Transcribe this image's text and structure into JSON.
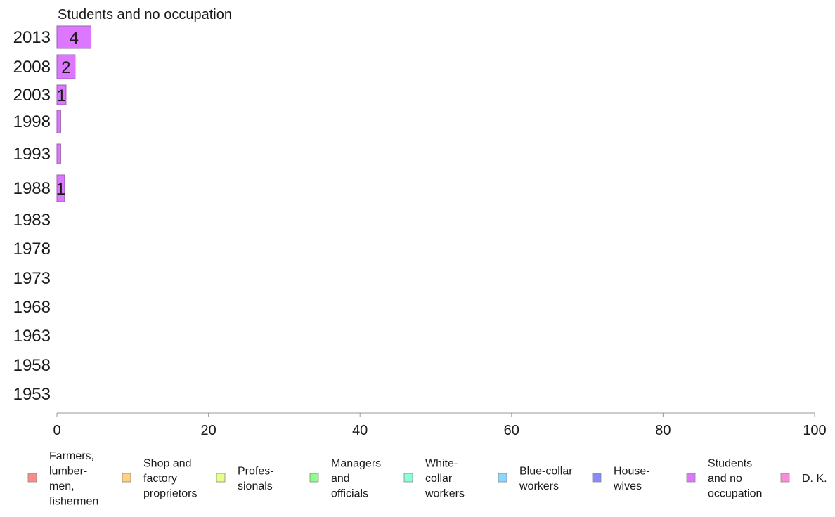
{
  "chart_data": {
    "type": "bar",
    "orientation": "horizontal",
    "title": "Students and no occupation",
    "categories": [
      "2013",
      "2008",
      "2003",
      "1998",
      "1993",
      "1988",
      "1983",
      "1978",
      "1973",
      "1968",
      "1963",
      "1958",
      "1953"
    ],
    "series": [
      {
        "name": "Students and no occupation",
        "color": "#dd77ff",
        "values": [
          4.5,
          2.4,
          1.2,
          0.5,
          0.5,
          1.0,
          0,
          0,
          0,
          0,
          0,
          0,
          0
        ],
        "labels": [
          "4",
          "2",
          "1",
          "",
          "",
          "1",
          "",
          "",
          "",
          "",
          "",
          "",
          ""
        ]
      }
    ],
    "xlim": [
      0,
      100
    ],
    "xticks": [
      0,
      20,
      40,
      60,
      80,
      100
    ],
    "grid": false,
    "legend_position": "bottom",
    "legend": [
      {
        "lines": [
          "Farmers,",
          "lumber-",
          "men,",
          "fishermen"
        ],
        "color": "#ff8a8a"
      },
      {
        "lines": [
          "Shop and",
          "factory",
          "proprietors"
        ],
        "color": "#ffd27f"
      },
      {
        "lines": [
          "Profes-",
          "sionals"
        ],
        "color": "#e6ff8a"
      },
      {
        "lines": [
          "Managers",
          "and",
          "officials"
        ],
        "color": "#8aff8a"
      },
      {
        "lines": [
          "White-",
          "collar",
          "workers"
        ],
        "color": "#8affd8"
      },
      {
        "lines": [
          "Blue-collar",
          "workers"
        ],
        "color": "#8ad8ff"
      },
      {
        "lines": [
          "House-",
          "wives"
        ],
        "color": "#8a8aff"
      },
      {
        "lines": [
          "Students",
          "and no",
          "occupation"
        ],
        "color": "#dd77ff"
      },
      {
        "lines": [
          "D. K."
        ],
        "color": "#ff8ad8"
      }
    ]
  }
}
